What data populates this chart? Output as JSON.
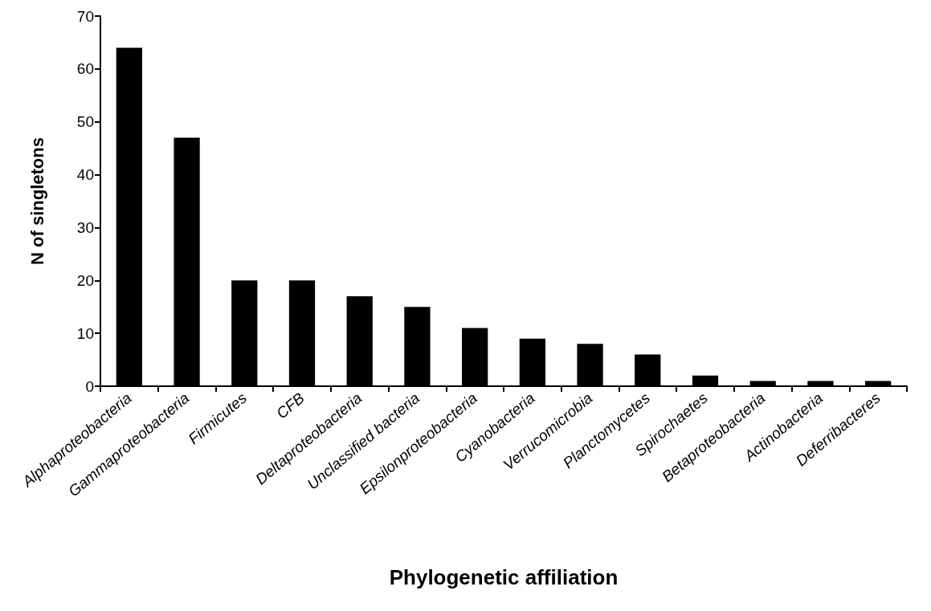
{
  "chart_data": {
    "type": "bar",
    "xlabel": "Phylogenetic affiliation",
    "ylabel": "N of singletons",
    "categories": [
      "Alphaproteobacteria",
      "Gammaproteobacteria",
      "Firmicutes",
      "CFB",
      "Deltaproteobacteria",
      "Unclassified bacteria",
      "Epsilonproteobacteria",
      "Cyanobacteria",
      "Verrucomicrobia",
      "Planctomycetes",
      "Spirochaetes",
      "Betaproteobacteria",
      "Actinobacteria",
      "Deferribacteres"
    ],
    "values": [
      64,
      47,
      20,
      20,
      17,
      15,
      11,
      9,
      8,
      6,
      2,
      1,
      1,
      1
    ],
    "color": "#000000",
    "ylim": [
      0,
      70
    ],
    "yticks": [
      0,
      10,
      20,
      30,
      40,
      50,
      60,
      70
    ],
    "grid": false
  }
}
